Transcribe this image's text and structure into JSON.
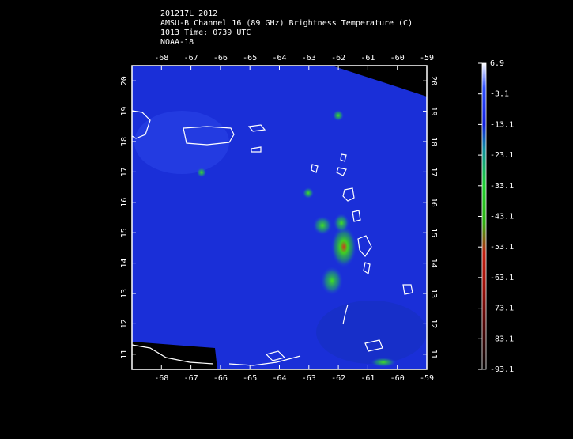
{
  "header": {
    "lines": [
      "201217L 2012",
      "AMSU-B Channel 16 (89 GHz) Brightness Temperature (C)",
      "1013 Time: 0739 UTC",
      "NOAA-18"
    ]
  },
  "map": {
    "lon_range": [
      -69,
      -59
    ],
    "lat_range": [
      10.5,
      20.5
    ],
    "lon_ticks": [
      -68,
      -67,
      -66,
      -65,
      -64,
      -63,
      -62,
      -61,
      -60,
      -59
    ],
    "lat_ticks": [
      11,
      12,
      13,
      14,
      15,
      16,
      17,
      18,
      19,
      20
    ]
  },
  "colorbar": {
    "range": [
      -93.1,
      6.9
    ],
    "labels": [
      6.9,
      -3.1,
      -13.1,
      -23.1,
      -33.1,
      -43.1,
      -53.1,
      -63.1,
      -73.1,
      -83.1,
      -93.1
    ]
  }
}
